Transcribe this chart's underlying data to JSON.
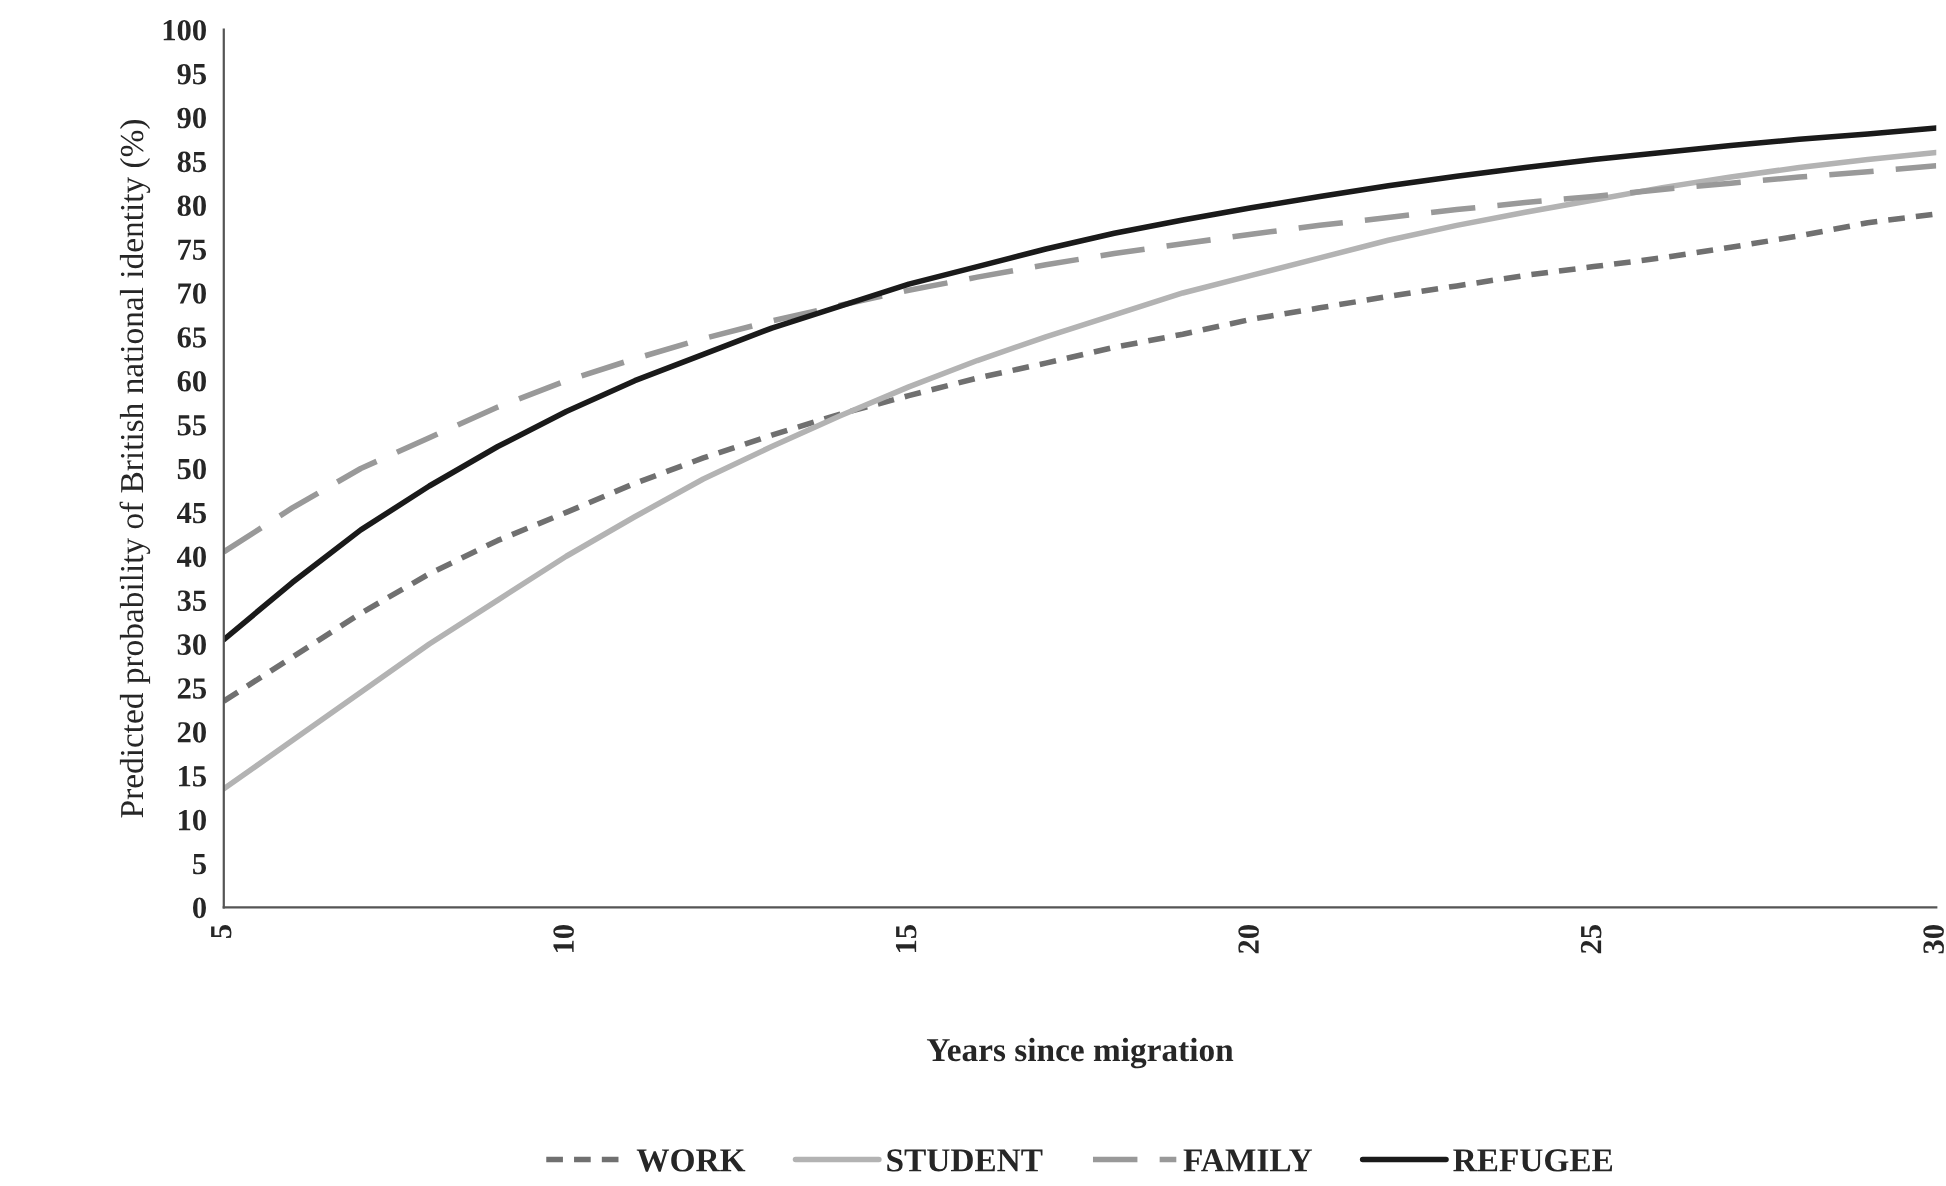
{
  "chart_data": {
    "type": "line",
    "xlabel": "Years since migration",
    "ylabel": "Predicted probability of British national identity (%)",
    "x": [
      5,
      6,
      7,
      8,
      9,
      10,
      11,
      12,
      13,
      14,
      15,
      16,
      17,
      18,
      19,
      20,
      21,
      22,
      23,
      24,
      25,
      26,
      27,
      28,
      29,
      30
    ],
    "xlim": [
      5,
      30
    ],
    "xticks": [
      5,
      10,
      15,
      20,
      25,
      30
    ],
    "ylim": [
      0,
      100
    ],
    "yticks": [
      0,
      5,
      10,
      15,
      20,
      25,
      30,
      35,
      40,
      45,
      50,
      55,
      60,
      65,
      70,
      75,
      80,
      85,
      90,
      95,
      100
    ],
    "grid": false,
    "legend": "bottom",
    "marker": "none",
    "series": [
      {
        "name": "WORK",
        "color": "#707070",
        "line_style": "dotted",
        "values": [
          23.5,
          28.5,
          33.5,
          38,
          41.8,
          45,
          48.3,
          51.2,
          53.8,
          56.2,
          58.3,
          60.3,
          62,
          63.8,
          65.3,
          67,
          68.3,
          69.6,
          70.8,
          72,
          73,
          74,
          75.2,
          76.5,
          78,
          79
        ]
      },
      {
        "name": "STUDENT",
        "color": "#b3b3b3",
        "line_style": "solid",
        "values": [
          13.5,
          19,
          24.5,
          30,
          35,
          40,
          44.5,
          48.8,
          52.5,
          56,
          59.3,
          62.3,
          65,
          67.5,
          70,
          72,
          74,
          76,
          77.7,
          79.2,
          80.6,
          82,
          83.2,
          84.3,
          85.2,
          86
        ]
      },
      {
        "name": "FAMILY",
        "color": "#999999",
        "line_style": "dashed",
        "values": [
          40.5,
          45.5,
          50,
          53.5,
          57,
          60,
          62.5,
          64.8,
          66.8,
          68.6,
          70.3,
          71.8,
          73.2,
          74.5,
          75.6,
          76.7,
          77.7,
          78.6,
          79.5,
          80.3,
          81,
          81.8,
          82.5,
          83.2,
          83.8,
          84.5
        ]
      },
      {
        "name": "REFUGEE",
        "color": "#1a1a1a",
        "line_style": "solid",
        "values": [
          30.5,
          37,
          43,
          48,
          52.5,
          56.5,
          60,
          63,
          66,
          68.5,
          71,
          73,
          75,
          76.8,
          78.3,
          79.7,
          81,
          82.2,
          83.3,
          84.3,
          85.2,
          86,
          86.8,
          87.5,
          88.1,
          88.8
        ]
      }
    ]
  }
}
